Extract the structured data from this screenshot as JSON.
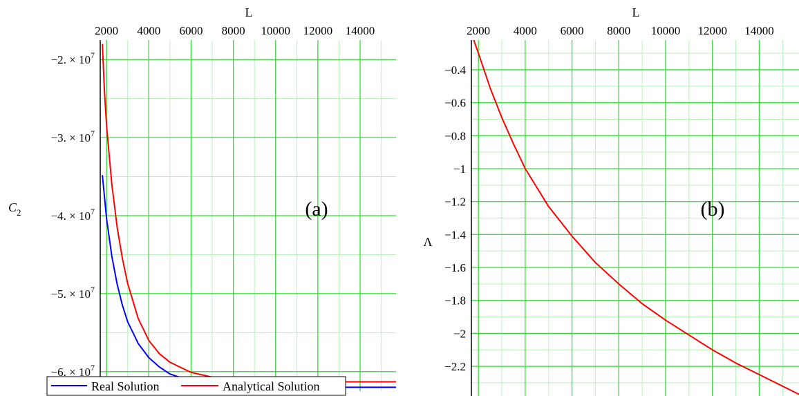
{
  "chart_data": [
    {
      "type": "line",
      "panel_label": "(a)",
      "xlabel": "L",
      "ylabel": "C",
      "ylabel_subscript": "2",
      "x_axis_position": "top",
      "xlim": [
        1700,
        15700
      ],
      "ylim": [
        -62500000,
        -17500000
      ],
      "x_ticks": [
        2000,
        4000,
        6000,
        8000,
        10000,
        12000,
        14000
      ],
      "x_tick_labels": [
        "2000",
        "4000",
        "6000",
        "8000",
        "10000",
        "12000",
        "14000"
      ],
      "y_ticks": [
        -20000000,
        -30000000,
        -40000000,
        -50000000,
        -60000000
      ],
      "y_tick_labels": [
        {
          "mantissa": "−2. × 10",
          "exponent": "7"
        },
        {
          "mantissa": "−3. × 10",
          "exponent": "7"
        },
        {
          "mantissa": "−4. × 10",
          "exponent": "7"
        },
        {
          "mantissa": "−5. × 10",
          "exponent": "7"
        },
        {
          "mantissa": "−6. × 10",
          "exponent": "7"
        }
      ],
      "grid": true,
      "legend_position": "bottom",
      "series": [
        {
          "name": "Real Solution",
          "color": "#0000ff",
          "x": [
            1800,
            2000,
            2250,
            2500,
            2750,
            3000,
            3500,
            4000,
            4500,
            5000,
            6000,
            7000,
            8000,
            10000,
            12000,
            14000,
            15700
          ],
          "y": [
            -34800000,
            -40400000,
            -45200000,
            -48800000,
            -51500000,
            -53600000,
            -56400000,
            -58200000,
            -59400000,
            -60300000,
            -61200000,
            -61600000,
            -61800000,
            -62000000,
            -62000000,
            -62000000,
            -62000000
          ]
        },
        {
          "name": "Analytical Solution",
          "color": "#ff0000",
          "x": [
            1800,
            1900,
            2000,
            2250,
            2500,
            2750,
            3000,
            3500,
            4000,
            4500,
            5000,
            6000,
            7000,
            8000,
            10000,
            12000,
            14000,
            15700
          ],
          "y": [
            -18000000,
            -24000000,
            -28500000,
            -36000000,
            -41500000,
            -45500000,
            -48700000,
            -53200000,
            -56000000,
            -57700000,
            -58800000,
            -60100000,
            -60700000,
            -61000000,
            -61200000,
            -61300000,
            -61300000,
            -61300000
          ]
        }
      ]
    },
    {
      "type": "line",
      "panel_label": "(b)",
      "xlabel": "L",
      "ylabel": "Λ",
      "x_axis_position": "top",
      "xlim": [
        1700,
        15700
      ],
      "ylim": [
        -2.38,
        -0.22
      ],
      "x_ticks": [
        2000,
        4000,
        6000,
        8000,
        10000,
        12000,
        14000
      ],
      "x_tick_labels": [
        "2000",
        "4000",
        "6000",
        "8000",
        "10000",
        "12000",
        "14000"
      ],
      "y_ticks": [
        -0.4,
        -0.6,
        -0.8,
        -1,
        -1.2,
        -1.4,
        -1.6,
        -1.8,
        -2,
        -2.2
      ],
      "y_tick_labels": [
        "−0.4",
        "−0.6",
        "−0.8",
        "−1",
        "−1.2",
        "−1.4",
        "−1.6",
        "−1.8",
        "−2",
        "−2.2"
      ],
      "grid": true,
      "series": [
        {
          "color": "#ff0000",
          "x": [
            1800,
            2000,
            2500,
            3000,
            3500,
            4000,
            5000,
            6000,
            7000,
            8000,
            9000,
            10000,
            11000,
            12000,
            13000,
            14000,
            15700
          ],
          "y": [
            -0.22,
            -0.3,
            -0.51,
            -0.69,
            -0.85,
            -1.0,
            -1.23,
            -1.41,
            -1.57,
            -1.7,
            -1.82,
            -1.92,
            -2.01,
            -2.1,
            -2.18,
            -2.25,
            -2.37
          ]
        }
      ]
    }
  ]
}
